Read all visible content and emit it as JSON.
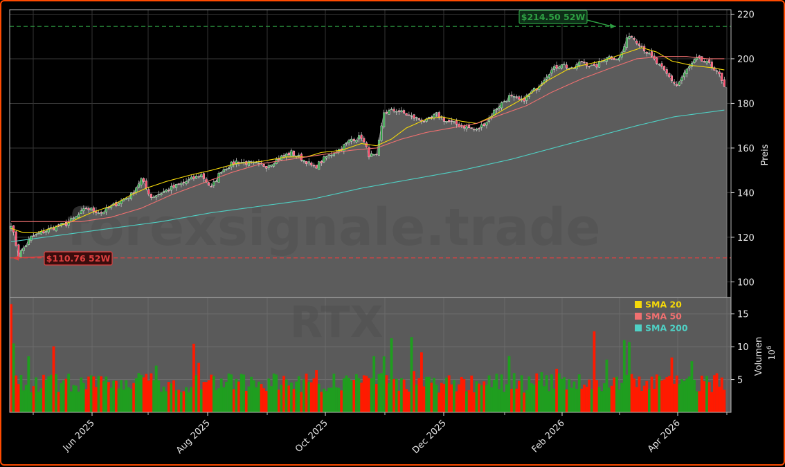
{
  "chart_data": {
    "type": "candlestick",
    "ticker": "RTX",
    "watermark": "forexsignale.trade",
    "x_ticks": [
      "Jun 2025",
      "Aug 2025",
      "Oct 2025",
      "Dec 2025",
      "Feb 2026",
      "Apr 2026"
    ],
    "y_price_label": "Preis",
    "y_price_ticks": [
      100,
      120,
      140,
      160,
      180,
      200,
      220
    ],
    "y_price_range": [
      93,
      222
    ],
    "y_volume_label": "Volumen",
    "y_volume_exponent": "10",
    "y_volume_exponent_sup": "6",
    "y_volume_ticks": [
      5,
      10,
      15
    ],
    "y_volume_range": [
      0,
      17.5
    ],
    "annotations": {
      "high_52w": {
        "label": "$214.50 52W",
        "value": 214.5,
        "color": "#2ea043"
      },
      "low_52w": {
        "label": "$110.76 52W",
        "value": 110.76,
        "color": "#e04040"
      }
    },
    "legend": [
      {
        "label": "SMA 20",
        "color": "#f5d90a"
      },
      {
        "label": "SMA 50",
        "color": "#f07070"
      },
      {
        "label": "SMA 200",
        "color": "#4fd1c5"
      }
    ],
    "legend_position": "top-right of volume panel",
    "last_close": 187,
    "grid": true,
    "series_anchors": {
      "close": [
        [
          0,
          126
        ],
        [
          3,
          112
        ],
        [
          8,
          120
        ],
        [
          16,
          124
        ],
        [
          22,
          126
        ],
        [
          26,
          129
        ],
        [
          30,
          133
        ],
        [
          36,
          131
        ],
        [
          42,
          135
        ],
        [
          48,
          139
        ],
        [
          52,
          146
        ],
        [
          56,
          138
        ],
        [
          62,
          141
        ],
        [
          70,
          145
        ],
        [
          76,
          148
        ],
        [
          80,
          142
        ],
        [
          84,
          150
        ],
        [
          90,
          154
        ],
        [
          96,
          153
        ],
        [
          102,
          152
        ],
        [
          108,
          156
        ],
        [
          112,
          158
        ],
        [
          118,
          154
        ],
        [
          121,
          151
        ],
        [
          126,
          156
        ],
        [
          132,
          160
        ],
        [
          136,
          164
        ],
        [
          140,
          165
        ],
        [
          143,
          157
        ],
        [
          146,
          156
        ],
        [
          149,
          176
        ],
        [
          154,
          177
        ],
        [
          160,
          174
        ],
        [
          166,
          172
        ],
        [
          170,
          175
        ],
        [
          174,
          172
        ],
        [
          180,
          170
        ],
        [
          186,
          168
        ],
        [
          190,
          172
        ],
        [
          194,
          178
        ],
        [
          199,
          183
        ],
        [
          204,
          181
        ],
        [
          210,
          187
        ],
        [
          215,
          194
        ],
        [
          220,
          198
        ],
        [
          224,
          195
        ],
        [
          228,
          199
        ],
        [
          233,
          196
        ],
        [
          238,
          201
        ],
        [
          243,
          200
        ],
        [
          247,
          211
        ],
        [
          251,
          207
        ],
        [
          254,
          203
        ],
        [
          258,
          198
        ],
        [
          262,
          193
        ],
        [
          266,
          188
        ],
        [
          270,
          195
        ],
        [
          274,
          200
        ],
        [
          278,
          198
        ],
        [
          282,
          195
        ],
        [
          285,
          187
        ]
      ],
      "sma20": [
        [
          0,
          124
        ],
        [
          5,
          122
        ],
        [
          10,
          122
        ],
        [
          16,
          124
        ],
        [
          24,
          127
        ],
        [
          32,
          131
        ],
        [
          40,
          134
        ],
        [
          48,
          139
        ],
        [
          54,
          142
        ],
        [
          62,
          145
        ],
        [
          72,
          148
        ],
        [
          80,
          150
        ],
        [
          90,
          153
        ],
        [
          100,
          154
        ],
        [
          110,
          156
        ],
        [
          118,
          156
        ],
        [
          124,
          158
        ],
        [
          132,
          159
        ],
        [
          140,
          162
        ],
        [
          146,
          161
        ],
        [
          152,
          164
        ],
        [
          158,
          169
        ],
        [
          166,
          173
        ],
        [
          172,
          174
        ],
        [
          180,
          172
        ],
        [
          186,
          171
        ],
        [
          192,
          174
        ],
        [
          198,
          178
        ],
        [
          206,
          183
        ],
        [
          214,
          190
        ],
        [
          222,
          195
        ],
        [
          228,
          197
        ],
        [
          236,
          199
        ],
        [
          244,
          202
        ],
        [
          252,
          205
        ],
        [
          258,
          203
        ],
        [
          264,
          199
        ],
        [
          272,
          197
        ],
        [
          280,
          196
        ],
        [
          285,
          195
        ]
      ],
      "sma50": [
        [
          0,
          127
        ],
        [
          16,
          127
        ],
        [
          28,
          127
        ],
        [
          40,
          129
        ],
        [
          52,
          133
        ],
        [
          64,
          139
        ],
        [
          76,
          144
        ],
        [
          88,
          149
        ],
        [
          100,
          153
        ],
        [
          112,
          155
        ],
        [
          124,
          157
        ],
        [
          136,
          159
        ],
        [
          146,
          160
        ],
        [
          156,
          164
        ],
        [
          166,
          167
        ],
        [
          176,
          169
        ],
        [
          186,
          171
        ],
        [
          196,
          175
        ],
        [
          206,
          179
        ],
        [
          216,
          185
        ],
        [
          228,
          191
        ],
        [
          240,
          196
        ],
        [
          250,
          200
        ],
        [
          260,
          201
        ],
        [
          270,
          201
        ],
        [
          278,
          200
        ],
        [
          285,
          200
        ]
      ],
      "sma200": [
        [
          0,
          118
        ],
        [
          20,
          121
        ],
        [
          40,
          124
        ],
        [
          60,
          127
        ],
        [
          80,
          131
        ],
        [
          100,
          134
        ],
        [
          120,
          137
        ],
        [
          140,
          142
        ],
        [
          160,
          146
        ],
        [
          180,
          150
        ],
        [
          200,
          155
        ],
        [
          220,
          161
        ],
        [
          240,
          167
        ],
        [
          250,
          170
        ],
        [
          265,
          174
        ],
        [
          285,
          177
        ]
      ]
    }
  }
}
